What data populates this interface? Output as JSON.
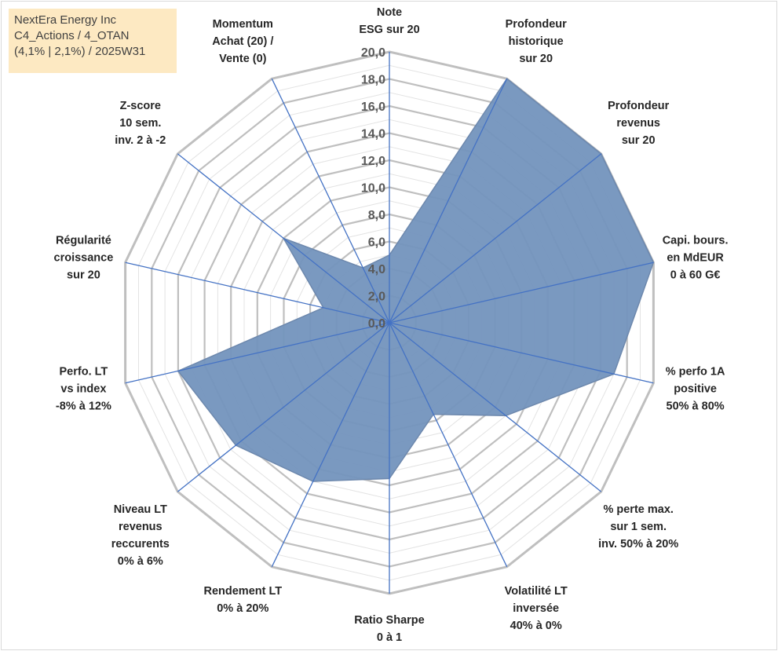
{
  "title_box": {
    "line1": "NextEra Energy Inc",
    "line2": "C4_Actions / 4_OTAN",
    "line3": "(4,1% | 2,1%) / 2025W31"
  },
  "chart_data": {
    "type": "radar",
    "r_min": 0,
    "r_max": 20,
    "ticks": [
      "0,0",
      "2,0",
      "4,0",
      "6,0",
      "8,0",
      "10,0",
      "12,0",
      "14,0",
      "16,0",
      "18,0",
      "20,0"
    ],
    "axes": [
      {
        "label": [
          "Note",
          "ESG sur 20"
        ],
        "value": 5.0
      },
      {
        "label": [
          "Profondeur",
          "historique",
          "sur 20"
        ],
        "value": 20.0
      },
      {
        "label": [
          "Profondeur",
          "revenus",
          "sur 20"
        ],
        "value": 20.0
      },
      {
        "label": [
          "Capi. bours.",
          "en MdEUR",
          "0 à 60 G€"
        ],
        "value": 20.0
      },
      {
        "label": [
          "% perfo 1A",
          "positive",
          "50% à 80%"
        ],
        "value": 17.0
      },
      {
        "label": [
          "% perte max.",
          "sur 1 sem.",
          "inv. 50% à 20%"
        ],
        "value": 11.0
      },
      {
        "label": [
          "Volatilité LT",
          "inversée",
          "40% à 0%"
        ],
        "value": 7.5
      },
      {
        "label": [
          "Ratio Sharpe",
          "0 à 1"
        ],
        "value": 11.5
      },
      {
        "label": [
          "Rendement LT",
          "0% à 20%"
        ],
        "value": 13.0
      },
      {
        "label": [
          "Niveau LT",
          "revenus",
          "reccurents",
          "0% à 6%"
        ],
        "value": 14.5
      },
      {
        "label": [
          "Perfo. LT",
          "vs index",
          "-8% à 12%"
        ],
        "value": 16.0
      },
      {
        "label": [
          "Régularité",
          "croissance",
          "sur 20"
        ],
        "value": 5.0
      },
      {
        "label": [
          "Z-score",
          "10 sem.",
          "inv. 2 à -2"
        ],
        "value": 10.0
      },
      {
        "label": [
          "Momentum",
          "Achat (20) /",
          "Vente (0)"
        ],
        "value": 4.5
      }
    ],
    "colors": {
      "fill": "#7393bd",
      "line": "#4472c4",
      "grid": "#bfbfbf",
      "title_bg": "#fde9c2"
    }
  }
}
